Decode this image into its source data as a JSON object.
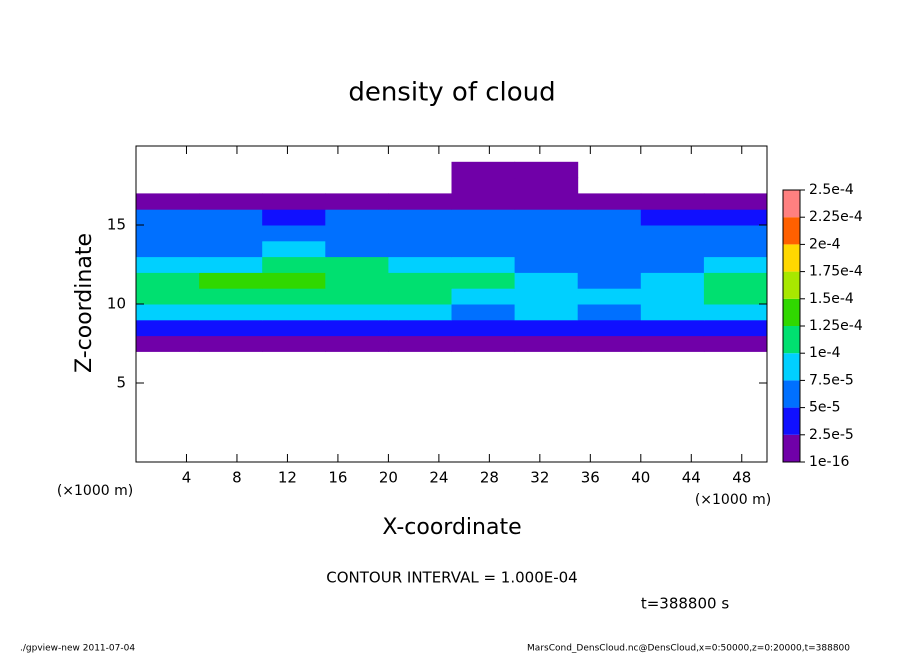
{
  "chart_data": {
    "type": "contour",
    "title": "density of cloud",
    "xlabel": "X-coordinate",
    "ylabel": "Z-coordinate",
    "unit_label": "(×1000 m)",
    "contour_interval": "CONTOUR INTERVAL = 1.000E-04",
    "time_label": "t=388800 s",
    "xlim": [
      0,
      50
    ],
    "ylim": [
      0,
      20
    ],
    "xticks": [
      4,
      8,
      12,
      16,
      20,
      24,
      28,
      32,
      36,
      40,
      44,
      48
    ],
    "yticks": [
      5,
      10,
      15
    ],
    "xbins": [
      0,
      5,
      10,
      15,
      20,
      25,
      30,
      35,
      40,
      45,
      50
    ],
    "zbins": [
      6,
      7,
      8,
      9,
      10,
      11,
      12,
      13,
      14,
      15,
      16,
      17,
      18,
      19,
      20
    ],
    "values": [
      [
        null,
        null,
        null,
        null,
        null,
        null,
        null,
        null,
        null,
        null
      ],
      [
        2e-05,
        2e-05,
        2e-05,
        2e-05,
        2e-05,
        2e-05,
        2e-05,
        1.5e-05,
        2e-05,
        2e-05
      ],
      [
        4e-05,
        4e-05,
        4.5e-05,
        4e-05,
        4e-05,
        3.5e-05,
        4e-05,
        4e-05,
        4e-05,
        4e-05
      ],
      [
        9e-05,
        9e-05,
        9e-05,
        8e-05,
        8e-05,
        7e-05,
        7.5e-05,
        7e-05,
        8e-05,
        9e-05
      ],
      [
        0.00011,
        0.000115,
        0.00011,
        0.000105,
        0.000105,
        9e-05,
        8e-05,
        7.5e-05,
        9e-05,
        0.000105
      ],
      [
        0.00011,
        0.00013,
        0.000135,
        0.00012,
        0.000115,
        0.0001,
        8e-05,
        7e-05,
        8.5e-05,
        0.000105
      ],
      [
        8e-05,
        9e-05,
        0.000105,
        0.0001,
        9.5e-05,
        8.5e-05,
        7e-05,
        6.5e-05,
        7e-05,
        8e-05
      ],
      [
        6.5e-05,
        7e-05,
        7.5e-05,
        7e-05,
        7e-05,
        7e-05,
        6.5e-05,
        6.5e-05,
        6e-05,
        6e-05
      ],
      [
        5.5e-05,
        6e-05,
        5.5e-05,
        5.5e-05,
        6e-05,
        6e-05,
        6e-05,
        5.5e-05,
        5e-05,
        5e-05
      ],
      [
        5e-05,
        5e-05,
        4.5e-05,
        5e-05,
        5.5e-05,
        5.5e-05,
        5e-05,
        5e-05,
        4.5e-05,
        4.5e-05
      ],
      [
        2e-05,
        2e-05,
        2e-05,
        2e-05,
        2e-05,
        2e-05,
        2e-05,
        2e-05,
        2e-05,
        2e-05
      ],
      [
        null,
        null,
        null,
        null,
        null,
        1e-05,
        1e-05,
        null,
        null,
        null
      ],
      [
        null,
        null,
        null,
        null,
        null,
        1e-05,
        1e-05,
        null,
        null,
        null
      ],
      [
        null,
        null,
        null,
        null,
        null,
        null,
        null,
        null,
        null,
        null
      ]
    ],
    "colorbar": {
      "ticks": [
        1e-16,
        {
          "value": 2.5e-05,
          "label": "2.5e-5"
        },
        {
          "value": 5e-05,
          "label": "5e-5"
        },
        {
          "value": 7.5e-05,
          "label": "7.5e-5"
        },
        {
          "value": 0.0001,
          "label": "1e-4"
        },
        {
          "value": 0.000125,
          "label": "1.25e-4"
        },
        {
          "value": 0.00015,
          "label": "1.5e-4"
        },
        {
          "value": 0.000175,
          "label": "1.75e-4"
        },
        {
          "value": 0.0002,
          "label": "2e-4"
        },
        {
          "value": 0.000225,
          "label": "2.25e-4"
        },
        {
          "value": 0.00025,
          "label": "2.5e-4"
        }
      ],
      "colors": [
        "#7000a8",
        "#1010ff",
        "#0070ff",
        "#00d0ff",
        "#00e070",
        "#30d800",
        "#a8e800",
        "#ffd800",
        "#ff6000",
        "#ff8080"
      ]
    }
  },
  "footer": {
    "left": "./gpview-new  2011-07-04",
    "right": "MarsCond_DensCloud.nc@DensCloud,x=0:50000,z=0:20000,t=388800"
  }
}
